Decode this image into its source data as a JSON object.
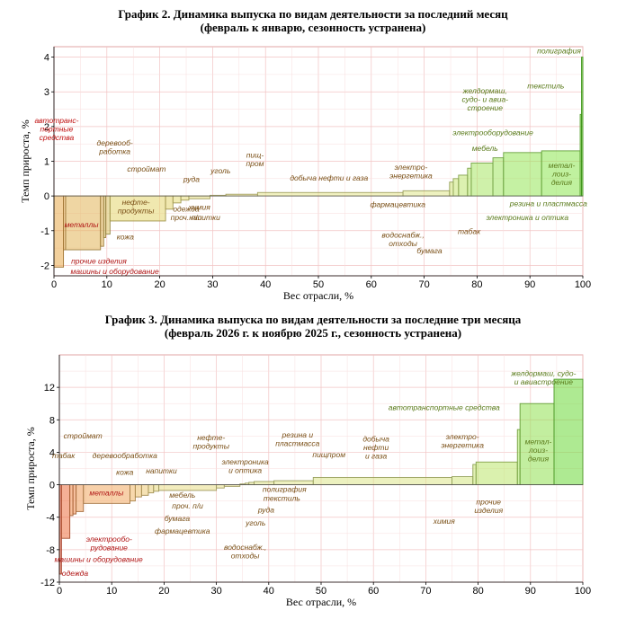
{
  "chart_data": [
    {
      "type": "bar",
      "subtype": "variable-width (Marimekko) step bars",
      "title_line1": "График 2. Динамика выпуска по видам деятельности за последний месяц",
      "title_line2": "(февраль к январю, сезонность устранена)",
      "xlabel": "Вес отрасли, %",
      "ylabel": "Темп прироста, %",
      "xlim": [
        0,
        100
      ],
      "ylim": [
        -2.3,
        4.3
      ],
      "xticks": [
        0,
        10,
        20,
        30,
        40,
        50,
        60,
        70,
        80,
        90,
        100
      ],
      "yticks": [
        -2,
        -1,
        0,
        1,
        2,
        3,
        4
      ],
      "grid": true,
      "bars": [
        {
          "x0": 0.0,
          "x1": 1.8,
          "value": -2.05,
          "color": "#e8a94a"
        },
        {
          "x0": 1.8,
          "x1": 2.2,
          "value": -1.55,
          "color": "#e8a94a"
        },
        {
          "x0": 2.2,
          "x1": 8.8,
          "value": -1.55,
          "color": "#e1b458"
        },
        {
          "x0": 8.8,
          "x1": 9.4,
          "value": -1.45,
          "color": "#e1b458"
        },
        {
          "x0": 9.4,
          "x1": 9.8,
          "value": -1.2,
          "color": "#dcbd60"
        },
        {
          "x0": 9.8,
          "x1": 10.6,
          "value": -1.1,
          "color": "#d9c466"
        },
        {
          "x0": 10.6,
          "x1": 21.1,
          "value": -0.72,
          "color": "#e3d56e"
        },
        {
          "x0": 21.1,
          "x1": 22.5,
          "value": -0.38,
          "color": "#e3d56e"
        },
        {
          "x0": 22.5,
          "x1": 24.0,
          "value": -0.2,
          "color": "#e6dc78"
        },
        {
          "x0": 24.0,
          "x1": 25.5,
          "value": -0.12,
          "color": "#e6dc78"
        },
        {
          "x0": 25.5,
          "x1": 29.5,
          "value": -0.08,
          "color": "#e6df80"
        },
        {
          "x0": 29.5,
          "x1": 32.5,
          "value": 0.02,
          "color": "#e9e28a"
        },
        {
          "x0": 32.5,
          "x1": 38.5,
          "value": 0.05,
          "color": "#e9e28a"
        },
        {
          "x0": 38.5,
          "x1": 66.0,
          "value": 0.1,
          "color": "#e6e68c"
        },
        {
          "x0": 66.0,
          "x1": 74.8,
          "value": 0.15,
          "color": "#dfe68a"
        },
        {
          "x0": 74.8,
          "x1": 75.5,
          "value": 0.4,
          "color": "#d4e67e"
        },
        {
          "x0": 75.5,
          "x1": 76.5,
          "value": 0.5,
          "color": "#cbe676"
        },
        {
          "x0": 76.5,
          "x1": 78.2,
          "value": 0.6,
          "color": "#c0e670"
        },
        {
          "x0": 78.2,
          "x1": 78.9,
          "value": 0.8,
          "color": "#b5e66a"
        },
        {
          "x0": 78.9,
          "x1": 83.0,
          "value": 0.95,
          "color": "#a8e664"
        },
        {
          "x0": 83.0,
          "x1": 85.0,
          "value": 1.1,
          "color": "#a0e660"
        },
        {
          "x0": 85.0,
          "x1": 92.2,
          "value": 1.25,
          "color": "#96e658"
        },
        {
          "x0": 92.2,
          "x1": 99.5,
          "value": 1.3,
          "color": "#8ce650"
        },
        {
          "x0": 99.5,
          "x1": 99.75,
          "value": 2.35,
          "color": "#78e03c"
        },
        {
          "x0": 99.75,
          "x1": 100.0,
          "value": 4.0,
          "color": "#5cd428"
        }
      ],
      "labels": [
        {
          "lines": [
            "автотранс-",
            "портные",
            "средства"
          ],
          "x": 0.5,
          "y": 2.1,
          "color": "#c01010"
        },
        {
          "lines": [
            "деревооб-",
            "работка"
          ],
          "x": 11.5,
          "y": 1.45,
          "color": "#7a4f16"
        },
        {
          "lines": [
            "строймат"
          ],
          "x": 17.5,
          "y": 0.7,
          "color": "#7a4f16"
        },
        {
          "lines": [
            "руда"
          ],
          "x": 26.0,
          "y": 0.4,
          "color": "#7a4f16"
        },
        {
          "lines": [
            "уголь"
          ],
          "x": 31.5,
          "y": 0.65,
          "color": "#7a4f16"
        },
        {
          "lines": [
            "пищ-",
            "пром"
          ],
          "x": 38.0,
          "y": 1.1,
          "color": "#7a4f16"
        },
        {
          "lines": [
            "добыча нефти и газа"
          ],
          "x": 52.0,
          "y": 0.45,
          "color": "#7a4f16"
        },
        {
          "lines": [
            "электро-",
            "энергетика"
          ],
          "x": 67.5,
          "y": 0.75,
          "color": "#7a4f16"
        },
        {
          "lines": [
            "электрооборудование"
          ],
          "x": 83.0,
          "y": 1.75,
          "color": "#5a7a1a"
        },
        {
          "lines": [
            "желдормаш,",
            "судо- и авиа-",
            "строение"
          ],
          "x": 81.5,
          "y": 2.95,
          "color": "#5a7a1a"
        },
        {
          "lines": [
            "мебель"
          ],
          "x": 81.5,
          "y": 1.3,
          "color": "#5a7a1a"
        },
        {
          "lines": [
            "текстиль"
          ],
          "x": 93.0,
          "y": 3.1,
          "color": "#5a7a1a"
        },
        {
          "lines": [
            "полиграфия"
          ],
          "x": 95.5,
          "y": 4.1,
          "color": "#5a7a1a"
        },
        {
          "lines": [
            "метал-",
            "лоиз-",
            "делия"
          ],
          "x": 96.0,
          "y": 0.8,
          "color": "#5a7a1a"
        },
        {
          "lines": [
            "резина и пластмасса"
          ],
          "x": 93.5,
          "y": -0.3,
          "color": "#5a7a1a"
        },
        {
          "lines": [
            "электроника и оптика"
          ],
          "x": 89.5,
          "y": -0.7,
          "color": "#5a7a1a"
        },
        {
          "lines": [
            "табак"
          ],
          "x": 78.5,
          "y": -1.1,
          "color": "#7a4f16"
        },
        {
          "lines": [
            "фармацевтика"
          ],
          "x": 65.0,
          "y": -0.32,
          "color": "#7a4f16"
        },
        {
          "lines": [
            "водоснабж.,",
            "отходы"
          ],
          "x": 66.0,
          "y": -1.2,
          "color": "#7a4f16"
        },
        {
          "lines": [
            "бумага"
          ],
          "x": 71.0,
          "y": -1.65,
          "color": "#7a4f16"
        },
        {
          "lines": [
            "металлы"
          ],
          "x": 5.2,
          "y": -0.9,
          "color": "#b01515"
        },
        {
          "lines": [
            "нефте-",
            "продукты"
          ],
          "x": 15.5,
          "y": -0.25,
          "color": "#7a4f16"
        },
        {
          "lines": [
            "кожа"
          ],
          "x": 13.5,
          "y": -1.25,
          "color": "#7a4f16"
        },
        {
          "lines": [
            "химия"
          ],
          "x": 27.5,
          "y": -0.4,
          "color": "#7a4f16"
        },
        {
          "lines": [
            "напитки"
          ],
          "x": 28.5,
          "y": -0.7,
          "color": "#7a4f16"
        },
        {
          "lines": [
            "одежда",
            "проч. п/и"
          ],
          "x": 25.0,
          "y": -0.45,
          "color": "#7a4f16"
        },
        {
          "lines": [
            "прочие изделия"
          ],
          "x": 8.5,
          "y": -1.95,
          "color": "#b01515"
        },
        {
          "lines": [
            "машины и оборудование"
          ],
          "x": 11.5,
          "y": -2.25,
          "color": "#b01515"
        }
      ]
    },
    {
      "type": "bar",
      "subtype": "variable-width (Marimekko) step bars",
      "title_line1": "График 3. Динамика выпуска по видам деятельности за последние три месяца",
      "title_line2": "(февраль 2026 г. к ноябрю 2025 г., сезонность устранена)",
      "xlabel": "Вес отрасли, %",
      "ylabel": "Темп прироста, %",
      "xlim": [
        0,
        100
      ],
      "ylim": [
        -12,
        16
      ],
      "xticks": [
        0,
        10,
        20,
        30,
        40,
        50,
        60,
        70,
        80,
        90,
        100
      ],
      "yticks": [
        -12,
        -8,
        -4,
        0,
        4,
        8,
        12
      ],
      "grid": true,
      "bars": [
        {
          "x0": 0.0,
          "x1": 0.4,
          "value": -11.0,
          "color": "#e85030"
        },
        {
          "x0": 0.4,
          "x1": 2.0,
          "value": -6.6,
          "color": "#ec7040"
        },
        {
          "x0": 2.0,
          "x1": 2.6,
          "value": -3.8,
          "color": "#ee8a4c"
        },
        {
          "x0": 2.6,
          "x1": 3.2,
          "value": -3.6,
          "color": "#ee8a4c"
        },
        {
          "x0": 3.2,
          "x1": 4.6,
          "value": -3.3,
          "color": "#ef9a58"
        },
        {
          "x0": 4.6,
          "x1": 13.5,
          "value": -2.3,
          "color": "#f0aa62"
        },
        {
          "x0": 13.5,
          "x1": 14.5,
          "value": -2.0,
          "color": "#f0b868"
        },
        {
          "x0": 14.5,
          "x1": 15.7,
          "value": -1.5,
          "color": "#eec270"
        },
        {
          "x0": 15.7,
          "x1": 17.0,
          "value": -1.3,
          "color": "#ecca76"
        },
        {
          "x0": 17.0,
          "x1": 18.0,
          "value": -1.0,
          "color": "#ead27c"
        },
        {
          "x0": 18.0,
          "x1": 19.0,
          "value": -0.8,
          "color": "#e8d880"
        },
        {
          "x0": 19.0,
          "x1": 30.0,
          "value": -0.7,
          "color": "#e8dc86"
        },
        {
          "x0": 30.0,
          "x1": 31.5,
          "value": -0.4,
          "color": "#e8e08a"
        },
        {
          "x0": 31.5,
          "x1": 34.5,
          "value": -0.2,
          "color": "#e8e08a"
        },
        {
          "x0": 34.5,
          "x1": 35.5,
          "value": 0.1,
          "color": "#e6e28c"
        },
        {
          "x0": 35.5,
          "x1": 36.2,
          "value": 0.2,
          "color": "#e4e48c"
        },
        {
          "x0": 36.2,
          "x1": 37.2,
          "value": 0.3,
          "color": "#e2e48a"
        },
        {
          "x0": 37.2,
          "x1": 41.0,
          "value": 0.4,
          "color": "#e0e48a"
        },
        {
          "x0": 41.0,
          "x1": 48.5,
          "value": 0.5,
          "color": "#dee48a"
        },
        {
          "x0": 48.5,
          "x1": 75.0,
          "value": 0.9,
          "color": "#dce68a"
        },
        {
          "x0": 75.0,
          "x1": 79.0,
          "value": 1.0,
          "color": "#d4e682"
        },
        {
          "x0": 79.0,
          "x1": 79.6,
          "value": 2.5,
          "color": "#c8e676"
        },
        {
          "x0": 79.6,
          "x1": 87.5,
          "value": 2.8,
          "color": "#bce66c"
        },
        {
          "x0": 87.5,
          "x1": 88.0,
          "value": 6.8,
          "color": "#a8e660"
        },
        {
          "x0": 88.0,
          "x1": 94.5,
          "value": 10.0,
          "color": "#90e050"
        },
        {
          "x0": 94.5,
          "x1": 100.0,
          "value": 13.0,
          "color": "#6cd838"
        }
      ],
      "labels": [
        {
          "lines": [
            "табак"
          ],
          "x": 0.8,
          "y": 3.3,
          "color": "#7a4f16"
        },
        {
          "lines": [
            "строймат"
          ],
          "x": 4.5,
          "y": 5.7,
          "color": "#7a4f16"
        },
        {
          "lines": [
            "деревообработка"
          ],
          "x": 12.5,
          "y": 3.3,
          "color": "#7a4f16"
        },
        {
          "lines": [
            "кожа"
          ],
          "x": 12.5,
          "y": 1.2,
          "color": "#7a4f16"
        },
        {
          "lines": [
            "металлы"
          ],
          "x": 9.0,
          "y": -1.3,
          "color": "#b01515"
        },
        {
          "lines": [
            "напитки"
          ],
          "x": 19.5,
          "y": 1.4,
          "color": "#7a4f16"
        },
        {
          "lines": [
            "нефте-",
            "продукты"
          ],
          "x": 29.0,
          "y": 5.5,
          "color": "#7a4f16"
        },
        {
          "lines": [
            "мебель"
          ],
          "x": 23.5,
          "y": -1.6,
          "color": "#7a4f16"
        },
        {
          "lines": [
            "проч. п/и"
          ],
          "x": 24.5,
          "y": -2.9,
          "color": "#7a4f16"
        },
        {
          "lines": [
            "бумага"
          ],
          "x": 22.5,
          "y": -4.5,
          "color": "#7a4f16"
        },
        {
          "lines": [
            "фармацевтика"
          ],
          "x": 23.5,
          "y": -6.0,
          "color": "#7a4f16"
        },
        {
          "lines": [
            "электрообо-",
            "рудование"
          ],
          "x": 9.5,
          "y": -7.0,
          "color": "#b01515"
        },
        {
          "lines": [
            "машины и оборудование"
          ],
          "x": 7.5,
          "y": -9.5,
          "color": "#b01515"
        },
        {
          "lines": [
            "одежда"
          ],
          "x": 3.0,
          "y": -11.2,
          "color": "#b01515"
        },
        {
          "lines": [
            "электроника",
            "и оптика"
          ],
          "x": 35.5,
          "y": 2.5,
          "color": "#7a4f16"
        },
        {
          "lines": [
            "резина и",
            "пластмасса"
          ],
          "x": 45.5,
          "y": 5.8,
          "color": "#7a4f16"
        },
        {
          "lines": [
            "пищпром"
          ],
          "x": 51.5,
          "y": 3.4,
          "color": "#7a4f16"
        },
        {
          "lines": [
            "полиграфия"
          ],
          "x": 43.0,
          "y": -0.9,
          "color": "#7a4f16"
        },
        {
          "lines": [
            "текстиль"
          ],
          "x": 42.5,
          "y": -2.0,
          "color": "#7a4f16"
        },
        {
          "lines": [
            "руда"
          ],
          "x": 39.5,
          "y": -3.4,
          "color": "#7a4f16"
        },
        {
          "lines": [
            "уголь"
          ],
          "x": 37.5,
          "y": -5.0,
          "color": "#7a4f16"
        },
        {
          "lines": [
            "водоснабж.,",
            "отходы"
          ],
          "x": 35.5,
          "y": -8.0,
          "color": "#7a4f16"
        },
        {
          "lines": [
            "добыча",
            "нефти",
            "и газа"
          ],
          "x": 60.5,
          "y": 5.3,
          "color": "#7a4f16"
        },
        {
          "lines": [
            "химия"
          ],
          "x": 73.5,
          "y": -4.8,
          "color": "#7a4f16"
        },
        {
          "lines": [
            "электро-",
            "энергетика"
          ],
          "x": 77.0,
          "y": 5.6,
          "color": "#7a4f16"
        },
        {
          "lines": [
            "прочие",
            "изделия"
          ],
          "x": 82.0,
          "y": -2.4,
          "color": "#7a4f16"
        },
        {
          "lines": [
            "автотранспортные средства"
          ],
          "x": 73.5,
          "y": 9.2,
          "color": "#5a7a1a"
        },
        {
          "lines": [
            "желдормаш, судо-",
            "и авиастроение"
          ],
          "x": 92.5,
          "y": 13.4,
          "color": "#5a7a1a"
        },
        {
          "lines": [
            "метал-",
            "лоиз-",
            "делия"
          ],
          "x": 91.5,
          "y": 5.0,
          "color": "#5a7a1a"
        }
      ]
    }
  ]
}
